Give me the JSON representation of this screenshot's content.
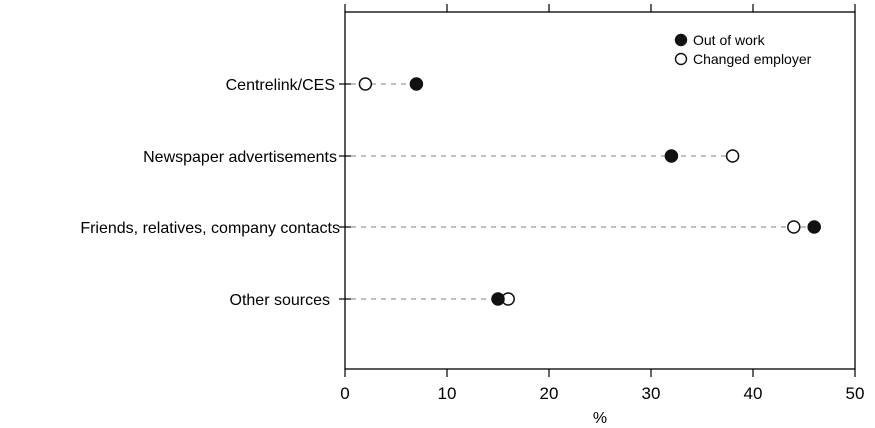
{
  "chart_data": {
    "type": "scatter",
    "orientation": "horizontal-dot-plot",
    "title": "",
    "xlabel": "%",
    "ylabel": "",
    "xlim": [
      0,
      50
    ],
    "xticks": [
      0,
      10,
      20,
      30,
      40,
      50
    ],
    "grid": false,
    "legend_position": "top-right",
    "categories": [
      "Centrelink/CES",
      "Newspaper advertisements",
      "Friends, relatives, company contacts",
      "Other sources"
    ],
    "series": [
      {
        "name": "Out of work",
        "marker": "filled-circle",
        "values": [
          7,
          32,
          46,
          15
        ]
      },
      {
        "name": "Changed employer",
        "marker": "open-circle",
        "values": [
          2,
          38,
          44,
          16
        ]
      }
    ]
  },
  "colors": {
    "marker": "#111111",
    "axis": "#000000",
    "guide_line": "#9a9a9a",
    "background": "#ffffff"
  }
}
